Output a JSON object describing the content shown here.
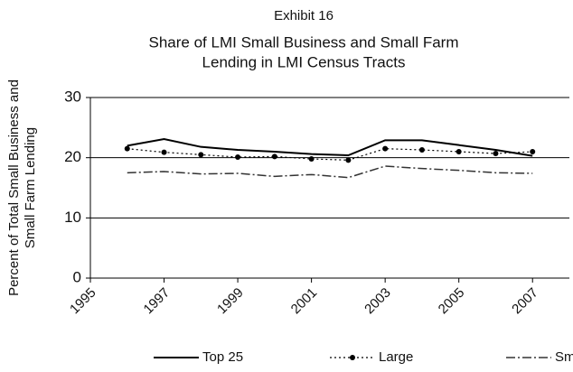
{
  "chart_data": {
    "type": "line",
    "title": "Exhibit 16",
    "subtitle": [
      "Share of LMI Small Business and Small Farm",
      "Lending in LMI Census Tracts"
    ],
    "y_label": [
      "Percent of Total Small Business and",
      "Small Farm Lending"
    ],
    "x": [
      1996,
      1997,
      1998,
      1999,
      2000,
      2001,
      2002,
      2003,
      2004,
      2005,
      2006,
      2007
    ],
    "series": [
      {
        "name": "Top 25",
        "color": "#000000",
        "values": [
          22.0,
          23.1,
          21.8,
          21.3,
          21.0,
          20.6,
          20.4,
          22.9,
          22.9,
          22.1,
          21.3,
          20.3
        ]
      },
      {
        "name": "Large",
        "color": "#000000",
        "values": [
          21.5,
          20.9,
          20.5,
          20.1,
          20.2,
          19.8,
          19.6,
          21.5,
          21.3,
          21.0,
          20.7,
          21.0
        ]
      },
      {
        "name": "Small",
        "color": "#333333",
        "values": [
          17.5,
          17.7,
          17.3,
          17.4,
          16.9,
          17.2,
          16.7,
          18.6,
          18.2,
          17.9,
          17.5,
          17.4
        ]
      }
    ],
    "xlim": [
      1995,
      2008
    ],
    "xticks": [
      1995,
      1997,
      1999,
      2001,
      2003,
      2005,
      2007
    ],
    "ylim": [
      0,
      30
    ],
    "yticks": [
      0,
      10,
      20,
      30
    ],
    "grid": true,
    "legend": "bottom"
  }
}
